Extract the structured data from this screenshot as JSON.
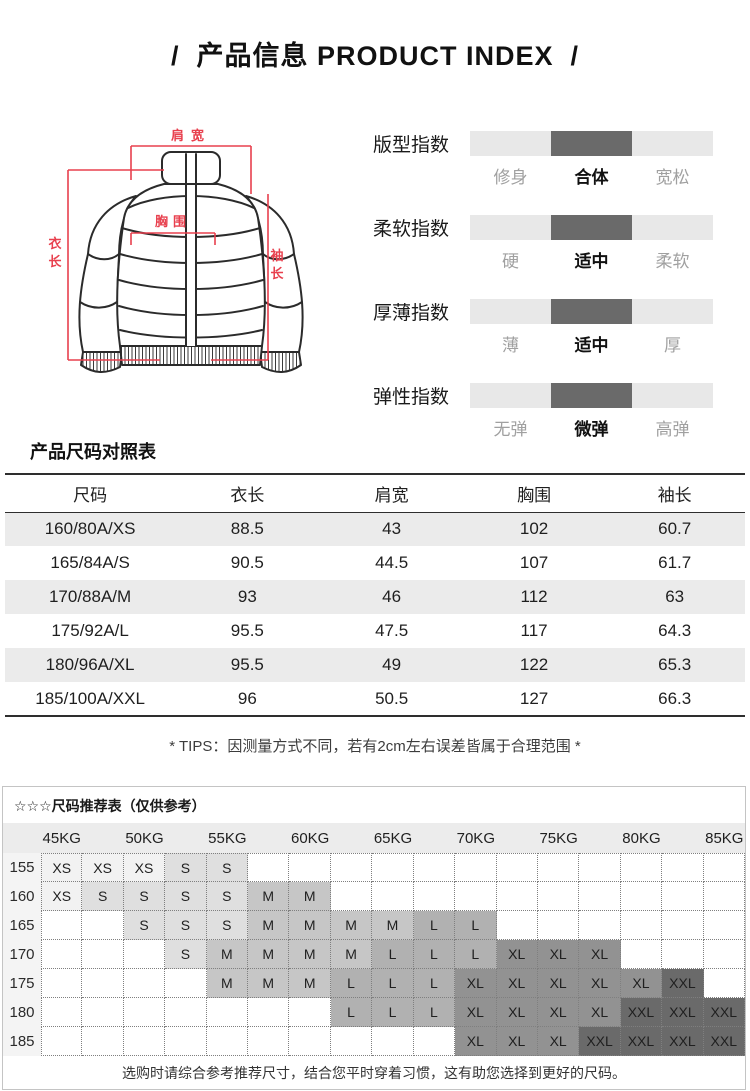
{
  "page": {
    "title": "/  产品信息 PRODUCT INDEX  /"
  },
  "diagram": {
    "shoulder_label": "肩宽",
    "chest_label": "胸围",
    "length_label": "衣长",
    "sleeve_label": "袖长"
  },
  "index_section": {
    "rows": [
      {
        "title": "版型指数",
        "options": [
          "修身",
          "合体",
          "宽松"
        ],
        "active": 1
      },
      {
        "title": "柔软指数",
        "options": [
          "硬",
          "适中",
          "柔软"
        ],
        "active": 1
      },
      {
        "title": "厚薄指数",
        "options": [
          "薄",
          "适中",
          "厚"
        ],
        "active": 1
      },
      {
        "title": "弹性指数",
        "options": [
          "无弹",
          "微弹",
          "高弹"
        ],
        "active": 1
      }
    ]
  },
  "size_table": {
    "title": "产品尺码对照表",
    "headers": [
      "尺码",
      "衣长",
      "肩宽",
      "胸围",
      "袖长"
    ],
    "rows": [
      [
        "160/80A/XS",
        "88.5",
        "43",
        "102",
        "60.7"
      ],
      [
        "165/84A/S",
        "90.5",
        "44.5",
        "107",
        "61.7"
      ],
      [
        "170/88A/M",
        "93",
        "46",
        "112",
        "63"
      ],
      [
        "175/92A/L",
        "95.5",
        "47.5",
        "117",
        "64.3"
      ],
      [
        "180/96A/XL",
        "95.5",
        "49",
        "122",
        "65.3"
      ],
      [
        "185/100A/XXL",
        "96",
        "50.5",
        "127",
        "66.3"
      ]
    ],
    "tips": "* TIPS：因测量方式不同，若有2cm左右误差皆属于合理范围 *"
  },
  "recommend_table": {
    "title": "☆☆☆尺码推荐表（仅供参考）",
    "weights": [
      "45KG",
      "50KG",
      "55KG",
      "60KG",
      "65KG",
      "70KG",
      "75KG",
      "80KG",
      "85KG"
    ],
    "rows": [
      {
        "height": "155",
        "cells": [
          "XS",
          "XS",
          "XS",
          "S",
          "S",
          "",
          "",
          "",
          "",
          "",
          "",
          "",
          "",
          "",
          "",
          "",
          ""
        ]
      },
      {
        "height": "160",
        "cells": [
          "XS",
          "S",
          "S",
          "S",
          "S",
          "M",
          "M",
          "",
          "",
          "",
          "",
          "",
          "",
          "",
          "",
          "",
          ""
        ]
      },
      {
        "height": "165",
        "cells": [
          "",
          "",
          "S",
          "S",
          "S",
          "M",
          "M",
          "M",
          "M",
          "L",
          "L",
          "",
          "",
          "",
          "",
          "",
          ""
        ]
      },
      {
        "height": "170",
        "cells": [
          "",
          "",
          "",
          "S",
          "M",
          "M",
          "M",
          "M",
          "L",
          "L",
          "L",
          "XL",
          "XL",
          "XL",
          "",
          "",
          ""
        ]
      },
      {
        "height": "175",
        "cells": [
          "",
          "",
          "",
          "",
          "M",
          "M",
          "M",
          "L",
          "L",
          "L",
          "XL",
          "XL",
          "XL",
          "XL",
          "XL",
          "XXL",
          ""
        ]
      },
      {
        "height": "180",
        "cells": [
          "",
          "",
          "",
          "",
          "",
          "",
          "",
          "L",
          "L",
          "L",
          "XL",
          "XL",
          "XL",
          "XL",
          "XXL",
          "XXL",
          "XXL"
        ]
      },
      {
        "height": "185",
        "cells": [
          "",
          "",
          "",
          "",
          "",
          "",
          "",
          "",
          "",
          "",
          "XL",
          "XL",
          "XL",
          "XXL",
          "XXL",
          "XXL",
          "XXL"
        ]
      }
    ],
    "size_colors": {
      "XS": "#f2f2f2",
      "S": "#dfdfdf",
      "M": "#c6c6c6",
      "L": "#b1b1b1",
      "XL": "#929292",
      "XXL": "#6a6a6a"
    },
    "note": "选购时请综合参考推荐尺寸，结合您平时穿着习惯，这有助您选择到更好的尺码。"
  },
  "colors": {
    "accent_red": "#e8404e",
    "bar_bg": "#e8e8e8",
    "bar_active": "#6a6a6a",
    "row_alt": "#ebebeb"
  }
}
